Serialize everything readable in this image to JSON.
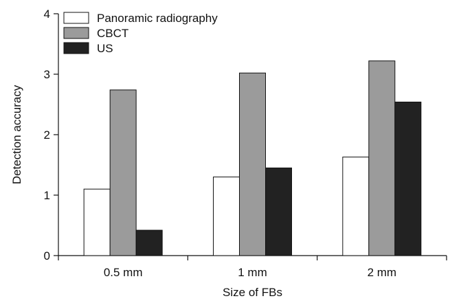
{
  "chart_data": {
    "type": "bar",
    "title": "",
    "xlabel": "Size of FBs",
    "ylabel": "Detection accuracy",
    "ylim": [
      0,
      4
    ],
    "yticks": [
      0,
      1,
      2,
      3,
      4
    ],
    "categories": [
      "0.5 mm",
      "1 mm",
      "2 mm"
    ],
    "series": [
      {
        "name": "Panoramic radiography",
        "values": [
          1.1,
          1.3,
          1.63
        ],
        "color": "#ffffff"
      },
      {
        "name": "CBCT",
        "values": [
          2.74,
          3.02,
          3.22
        ],
        "color": "#9b9b9b"
      },
      {
        "name": "US",
        "values": [
          0.42,
          1.45,
          2.54
        ],
        "color": "#222222"
      }
    ],
    "grid": false,
    "legend_position": "top-left"
  }
}
